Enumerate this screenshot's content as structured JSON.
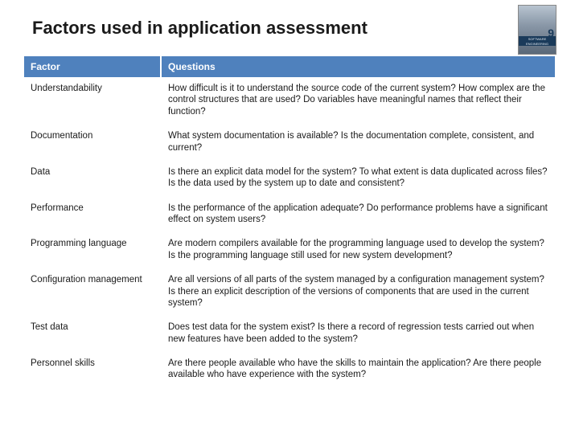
{
  "title": "Factors used in application assessment",
  "book": {
    "label": "SOFTWARE ENGINEERING",
    "edition": "9"
  },
  "table": {
    "header_bg": "#4f81bd",
    "header_fg": "#ffffff",
    "cell_font_size": 11.5,
    "header_font_size": 12,
    "columns": [
      "Factor",
      "Questions"
    ],
    "rows": [
      {
        "factor": "Understandability",
        "questions": "How difficult is it to understand the source code of the current system? How complex are the control structures that are used? Do variables have meaningful names that reflect their function?"
      },
      {
        "factor": "Documentation",
        "questions": "What system documentation is available? Is the documentation complete, consistent, and current?"
      },
      {
        "factor": "Data",
        "questions": "Is there an explicit data model for the system? To what extent is data duplicated across files? Is the data used by the system up to date and consistent?"
      },
      {
        "factor": "Performance",
        "questions": "Is the performance of the application adequate? Do performance problems have a significant effect on system users?"
      },
      {
        "factor": "Programming language",
        "questions": "Are modern compilers available for the programming language used to develop the system? Is the programming language still used for new system development?"
      },
      {
        "factor": "Configuration management",
        "questions": "Are all versions of all parts of the system managed by a configuration management system? Is there an explicit description of the versions of components that are used in the current system?"
      },
      {
        "factor": "Test data",
        "questions": "Does test data for the system exist? Is there a record of regression tests carried out when new features have been added to the system?"
      },
      {
        "factor": "Personnel skills",
        "questions": "Are there people available who have the skills to maintain the application? Are there people available who have experience with the system?"
      }
    ]
  }
}
